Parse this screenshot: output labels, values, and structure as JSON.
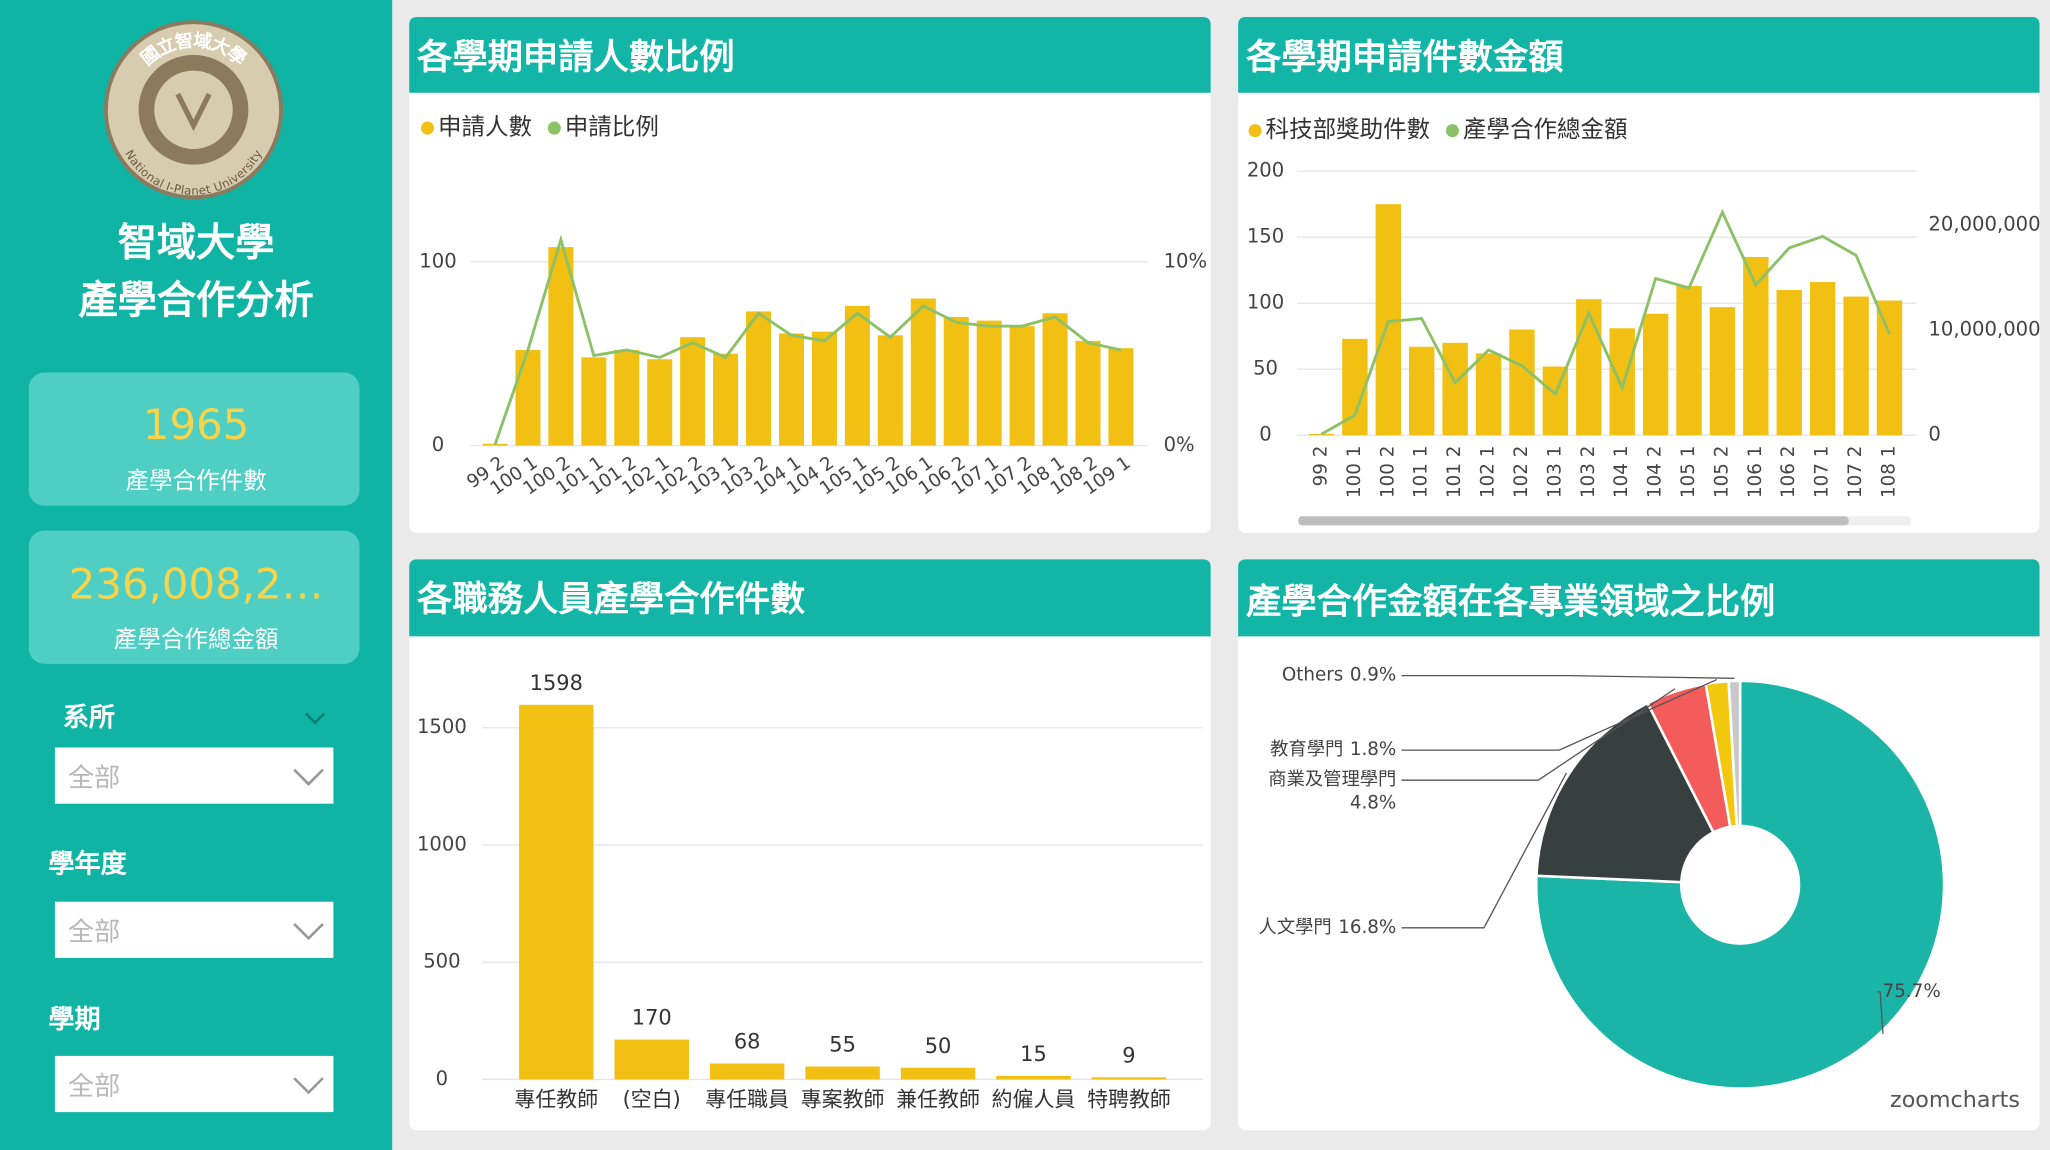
{
  "sidebar": {
    "logo": {
      "name_zh": "國立智域大學",
      "name_en": "National I-Planet University"
    },
    "title": [
      "智域大學",
      "產學合作分析"
    ],
    "cards": [
      {
        "value": "1965",
        "label": "產學合作件數"
      },
      {
        "value": "236,008,2…",
        "label": "產學合作總金額"
      }
    ],
    "filters": [
      {
        "label": "系所",
        "selected": "全部"
      },
      {
        "label": "學年度",
        "selected": "全部"
      },
      {
        "label": "學期",
        "selected": "全部"
      }
    ]
  },
  "chart_data": [
    {
      "type": "combo",
      "title": "各學期申請人數比例",
      "categories": [
        "99 2",
        "100 1",
        "100 2",
        "101 1",
        "101 2",
        "102 1",
        "102 2",
        "103 1",
        "103 2",
        "104 1",
        "104 2",
        "105 1",
        "105 2",
        "106 1",
        "106 2",
        "107 1",
        "107 2",
        "108 1",
        "108 2",
        "109 1"
      ],
      "series": [
        {
          "name": "申請人數",
          "type": "bar",
          "color": "#f2c012",
          "values": [
            1,
            52,
            108,
            48,
            52,
            47,
            59,
            50,
            73,
            61,
            62,
            76,
            60,
            80,
            70,
            68,
            65,
            72,
            57,
            53
          ]
        },
        {
          "name": "申請比例",
          "type": "line",
          "axis": "y2",
          "color": "#8cc168",
          "values": [
            0.05,
            5.2,
            11.2,
            4.9,
            5.2,
            4.8,
            5.6,
            4.8,
            7.2,
            6.0,
            5.7,
            7.2,
            5.9,
            7.6,
            6.7,
            6.5,
            6.5,
            7.0,
            5.6,
            5.2
          ]
        }
      ],
      "ylim": [
        0,
        118
      ],
      "yticks": [
        0,
        100
      ],
      "y2lim": [
        0,
        11.8
      ],
      "y2ticks": [
        {
          "value": 0,
          "label": "0%"
        },
        {
          "value": 10,
          "label": "10%"
        }
      ],
      "grid": true
    },
    {
      "type": "combo",
      "title": "各學期申請件數金額",
      "categories": [
        "99 2",
        "100 1",
        "100 2",
        "101 1",
        "101 2",
        "102 1",
        "102 2",
        "103 1",
        "103 2",
        "104 1",
        "104 2",
        "105 1",
        "105 2",
        "106 1",
        "106 2",
        "107 1",
        "107 2",
        "108 1"
      ],
      "series": [
        {
          "name": "科技部獎助件數",
          "type": "bar",
          "color": "#f2c012",
          "values": [
            1,
            73,
            175,
            67,
            70,
            62,
            80,
            52,
            103,
            81,
            92,
            113,
            97,
            135,
            110,
            116,
            105,
            102
          ]
        },
        {
          "name": "產學合作總金額",
          "type": "line",
          "axis": "y2",
          "color": "#8cc168",
          "values": [
            100000,
            1900000,
            10800000,
            11100000,
            5000000,
            8100000,
            6600000,
            3900000,
            11600000,
            4500000,
            14900000,
            14000000,
            21200000,
            14300000,
            17800000,
            18900000,
            17100000,
            9600000
          ]
        }
      ],
      "ylim": [
        0,
        200
      ],
      "yticks": [
        0,
        50,
        100,
        150,
        200
      ],
      "y2lim": [
        0,
        25100000
      ],
      "y2ticks": [
        0,
        {
          "value": 10000000,
          "label": "10,000,000"
        },
        {
          "value": 20000000,
          "label": "20,000,000"
        }
      ],
      "grid": true
    },
    {
      "type": "bar",
      "title": "各職務人員產學合作件數",
      "categories": [
        "專任教師",
        "(空白)",
        "專任職員",
        "專案教師",
        "兼任教師",
        "約僱人員",
        "特聘教師"
      ],
      "values": [
        1598,
        170,
        68,
        55,
        50,
        15,
        9
      ],
      "color": "#f2c012",
      "ylim": [
        0,
        1700
      ],
      "yticks": [
        0,
        500,
        1000,
        1500
      ],
      "grid": true
    },
    {
      "type": "donut",
      "title": "產學合作金額在各專業領域之比例",
      "categories": [
        null,
        "人文學門",
        "商業及管理學門",
        "教育學門",
        "Others"
      ],
      "values": [
        75.7,
        16.8,
        4.8,
        1.8,
        0.9
      ],
      "value_labels": [
        "75.7%",
        "16.8%",
        "4.8%",
        "1.8%",
        "0.9%"
      ],
      "colors": [
        "#1ab5a6",
        "#37403f",
        "#f45b5b",
        "#f2c80f",
        "#c8c8c8"
      ],
      "watermark": "zoomcharts"
    }
  ]
}
